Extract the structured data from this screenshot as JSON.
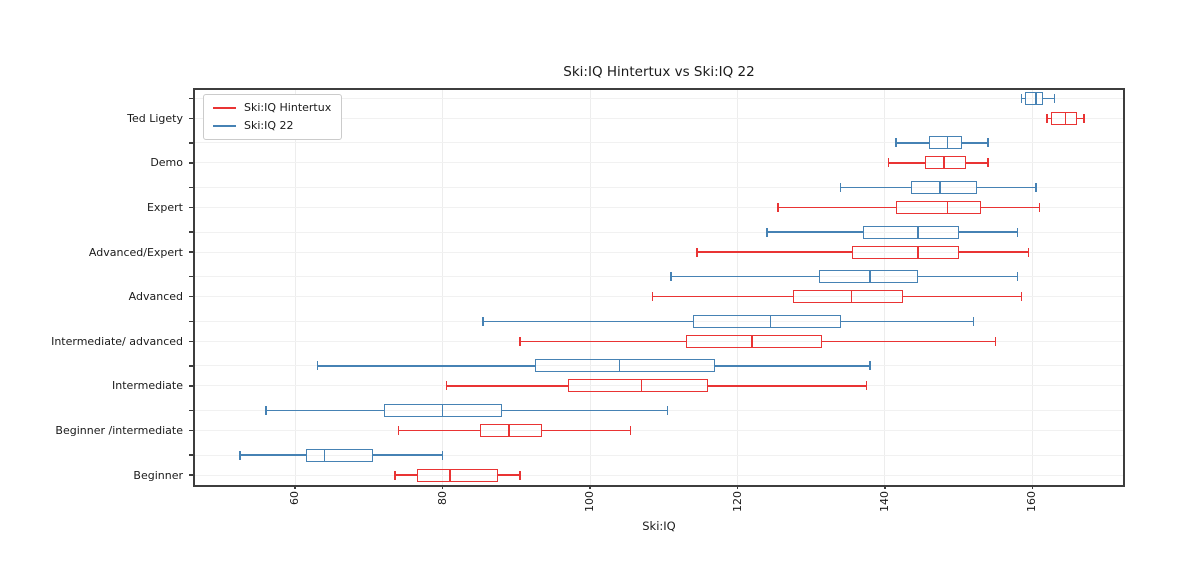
{
  "figure": {
    "title": "Ski:IQ Hintertux vs Ski:IQ 22",
    "xlabel": "Ski:IQ",
    "background_color": "#ffffff",
    "spine_color": "#3d3d3d",
    "grid_color": "#eeeeee"
  },
  "legend": {
    "position": "upper-left",
    "entries": [
      {
        "label": "Ski:IQ Hintertux",
        "color": "#e93434"
      },
      {
        "label": "Ski:IQ 22",
        "color": "#4682b4"
      }
    ]
  },
  "chart_data": {
    "type": "boxplot",
    "orientation": "horizontal",
    "title": "Ski:IQ Hintertux vs Ski:IQ 22",
    "xlabel": "Ski:IQ",
    "ylabel": "",
    "xlim": [
      46.4,
      172.3
    ],
    "xticks": [
      60,
      80,
      100,
      120,
      140,
      160
    ],
    "xtick_label_rotation": 90,
    "grid": true,
    "legend_position": "upper-left",
    "box_stats_format": [
      "whisker_low",
      "q1",
      "median",
      "q3",
      "whisker_high"
    ],
    "categories": [
      "Ted Ligety",
      "Demo",
      "Expert",
      "Advanced/Expert",
      "Advanced",
      "Intermediate/ advanced",
      "Intermediate",
      "Beginner /intermediate",
      "Beginner"
    ],
    "series": [
      {
        "name": "Ski:IQ Hintertux",
        "color": "#e93434",
        "position_in_pair": "lower",
        "boxes": [
          [
            162,
            162.5,
            164.5,
            166,
            167
          ],
          [
            140.5,
            145.5,
            148,
            151,
            154
          ],
          [
            125.5,
            141.5,
            148.5,
            153,
            161
          ],
          [
            114.5,
            135.5,
            144.5,
            150,
            159.5
          ],
          [
            108.5,
            127.5,
            135.5,
            142.5,
            158.5
          ],
          [
            90.5,
            113,
            122,
            131.5,
            155
          ],
          [
            80.5,
            97,
            107,
            116,
            137.5
          ],
          [
            74,
            85,
            89,
            93.5,
            105.5
          ],
          [
            73.5,
            76.5,
            81,
            87.5,
            90.5
          ]
        ]
      },
      {
        "name": "Ski:IQ 22",
        "color": "#4682b4",
        "position_in_pair": "upper",
        "boxes": [
          [
            158.5,
            159,
            160.5,
            161.5,
            163
          ],
          [
            141.5,
            146,
            148.5,
            150.5,
            154
          ],
          [
            134,
            143.5,
            147.5,
            152.5,
            160.5
          ],
          [
            124,
            137,
            144.5,
            150,
            158
          ],
          [
            111,
            131,
            138,
            144.5,
            158
          ],
          [
            85.5,
            114,
            124.5,
            134,
            152
          ],
          [
            63,
            92.5,
            104,
            117,
            138
          ],
          [
            56,
            72,
            80,
            88,
            110.5
          ],
          [
            52.5,
            61.5,
            64,
            70.5,
            80
          ]
        ]
      }
    ]
  }
}
